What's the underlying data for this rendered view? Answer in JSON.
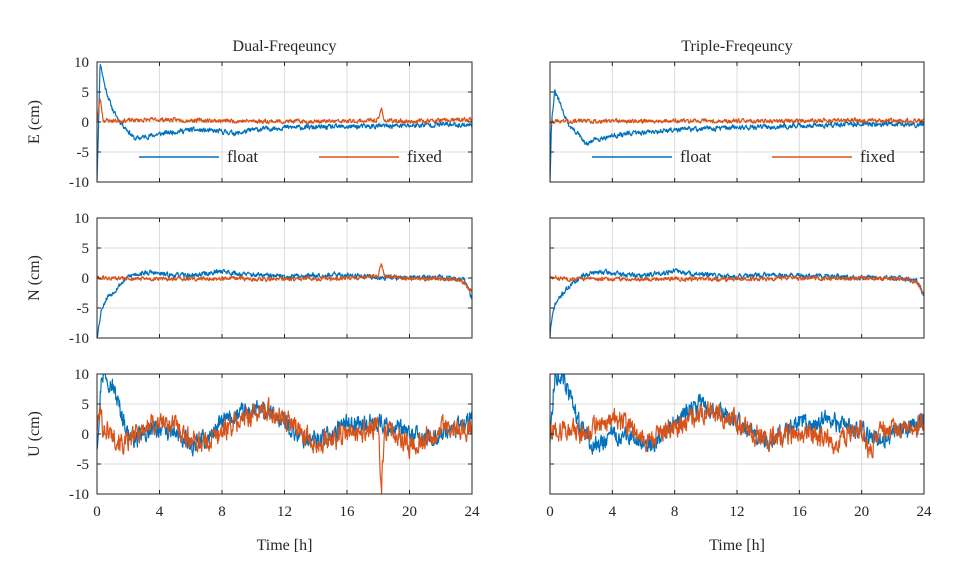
{
  "colors": {
    "float": "#0072BD",
    "fixed": "#D95319",
    "grid": "#dcdcdc",
    "axis": "#262626"
  },
  "chart_data": [
    {
      "type": "line",
      "panel": "dual-e",
      "title": "Dual-Freqeuncy",
      "ylabel": "E (cm)",
      "xlabel": "",
      "xlim": [
        0,
        24
      ],
      "ylim": [
        -10,
        10
      ],
      "xticks": [
        0,
        4,
        8,
        12,
        16,
        20,
        24
      ],
      "yticks": [
        -10,
        -5,
        0,
        5,
        10
      ],
      "show_xticklabels": false,
      "show_yticklabels": true,
      "grid": true,
      "legend": "bottom-center",
      "series": [
        {
          "name": "float",
          "color": "#0072BD",
          "noise": 0.35,
          "seed": 11,
          "x": [
            0,
            0.2,
            0.5,
            0.8,
            1.1,
            1.5,
            2.0,
            2.4,
            3.0,
            4.0,
            5.0,
            6.0,
            8.0,
            9.0,
            10.0,
            12.0,
            14.0,
            16.0,
            18.0,
            20.0,
            22.0,
            24.0
          ],
          "y": [
            -10,
            10,
            6,
            3.5,
            1.5,
            0,
            -1.5,
            -2.8,
            -2.5,
            -2.0,
            -1.6,
            -1.3,
            -1.6,
            -1.9,
            -1.3,
            -0.9,
            -0.9,
            -0.8,
            -0.7,
            -0.6,
            -0.4,
            -0.5
          ]
        },
        {
          "name": "fixed",
          "color": "#D95319",
          "noise": 0.3,
          "seed": 23,
          "x": [
            0,
            0.2,
            0.4,
            1.0,
            4.0,
            8.0,
            12.0,
            16.0,
            18.0,
            18.2,
            18.4,
            20.0,
            24.0
          ],
          "y": [
            0,
            4,
            0.3,
            0.2,
            0.4,
            0.2,
            0.1,
            0.1,
            0.3,
            2.3,
            0.2,
            0.1,
            0.4
          ]
        }
      ]
    },
    {
      "type": "line",
      "panel": "triple-e",
      "title": "Triple-Freqeuncy",
      "ylabel": "",
      "xlabel": "",
      "xlim": [
        0,
        24
      ],
      "ylim": [
        -10,
        10
      ],
      "xticks": [
        0,
        4,
        8,
        12,
        16,
        20,
        24
      ],
      "yticks": [
        -10,
        -5,
        0,
        5,
        10
      ],
      "show_xticklabels": false,
      "show_yticklabels": false,
      "grid": true,
      "legend": "bottom-center",
      "series": [
        {
          "name": "float",
          "color": "#0072BD",
          "noise": 0.35,
          "seed": 31,
          "x": [
            0,
            0.1,
            0.3,
            0.5,
            0.8,
            1.2,
            1.8,
            2.3,
            3.0,
            4.0,
            6.0,
            8.0,
            10.0,
            12.0,
            14.0,
            16.0,
            18.0,
            20.0,
            22.0,
            24.0
          ],
          "y": [
            -10,
            0,
            5,
            4,
            2,
            -0.5,
            -2,
            -3.8,
            -2.8,
            -2.3,
            -1.7,
            -1.3,
            -1.1,
            -0.9,
            -0.8,
            -0.6,
            -0.5,
            -0.3,
            -0.4,
            -0.5
          ]
        },
        {
          "name": "fixed",
          "color": "#D95319",
          "noise": 0.3,
          "seed": 43,
          "x": [
            0,
            1.0,
            4.0,
            8.0,
            12.0,
            16.0,
            20.0,
            24.0
          ],
          "y": [
            0.1,
            0.2,
            0.1,
            0.2,
            0.1,
            0.2,
            0.3,
            0.2
          ]
        }
      ]
    },
    {
      "type": "line",
      "panel": "dual-n",
      "title": "",
      "ylabel": "N (cm)",
      "xlabel": "",
      "xlim": [
        0,
        24
      ],
      "ylim": [
        -10,
        10
      ],
      "xticks": [
        0,
        4,
        8,
        12,
        16,
        20,
        24
      ],
      "yticks": [
        -10,
        -5,
        0,
        5,
        10
      ],
      "show_xticklabels": false,
      "show_yticklabels": true,
      "grid": true,
      "series": [
        {
          "name": "float",
          "color": "#0072BD",
          "noise": 0.35,
          "seed": 53,
          "x": [
            0,
            0.05,
            0.3,
            0.7,
            1.0,
            1.5,
            2.0,
            2.5,
            3.5,
            4.5,
            6.0,
            7.5,
            8.0,
            9.0,
            12.0,
            14.0,
            16.0,
            18.0,
            20.0,
            22.0,
            23.5,
            24.0
          ],
          "y": [
            -10,
            -9,
            -5,
            -3,
            -2.5,
            -1,
            0.2,
            0.7,
            0.9,
            0.5,
            0.4,
            0.9,
            1.2,
            0.7,
            0.2,
            0.5,
            0.5,
            0.1,
            0.1,
            0.1,
            -0.3,
            -3.5
          ]
        },
        {
          "name": "fixed",
          "color": "#D95319",
          "noise": 0.3,
          "seed": 61,
          "x": [
            0,
            1.0,
            4.0,
            8.0,
            12.0,
            16.0,
            18.0,
            18.2,
            18.4,
            20.0,
            23.0,
            23.6,
            24.0
          ],
          "y": [
            0,
            -0.1,
            -0.2,
            -0.1,
            -0.2,
            0,
            0.3,
            2.4,
            0.3,
            -0.1,
            -0.2,
            -1.0,
            -2.5
          ]
        }
      ]
    },
    {
      "type": "line",
      "panel": "triple-n",
      "title": "",
      "ylabel": "",
      "xlabel": "",
      "xlim": [
        0,
        24
      ],
      "ylim": [
        -10,
        10
      ],
      "xticks": [
        0,
        4,
        8,
        12,
        16,
        20,
        24
      ],
      "yticks": [
        -10,
        -5,
        0,
        5,
        10
      ],
      "show_xticklabels": false,
      "show_yticklabels": false,
      "grid": true,
      "series": [
        {
          "name": "float",
          "color": "#0072BD",
          "noise": 0.35,
          "seed": 71,
          "x": [
            0,
            0.05,
            0.3,
            0.7,
            1.0,
            1.5,
            2.0,
            2.5,
            3.5,
            4.5,
            6.0,
            7.5,
            8.0,
            9.0,
            12.0,
            14.0,
            16.0,
            18.0,
            20.0,
            22.0,
            23.5,
            24.0
          ],
          "y": [
            -10,
            -8,
            -4.5,
            -3,
            -2,
            -0.8,
            0.3,
            0.8,
            1.0,
            0.6,
            0.4,
            1.0,
            1.2,
            0.7,
            0.2,
            0.5,
            0.4,
            0.2,
            0.1,
            0,
            -0.3,
            -3.0
          ]
        },
        {
          "name": "fixed",
          "color": "#D95319",
          "noise": 0.3,
          "seed": 83,
          "x": [
            0,
            1.0,
            4.0,
            8.0,
            12.0,
            16.0,
            20.0,
            23.0,
            23.6,
            24.0
          ],
          "y": [
            0,
            -0.1,
            -0.2,
            -0.1,
            -0.2,
            0,
            -0.1,
            -0.2,
            -1.0,
            -2.5
          ]
        }
      ]
    },
    {
      "type": "line",
      "panel": "dual-u",
      "title": "",
      "ylabel": "U (cm)",
      "xlabel": "Time [h]",
      "xlim": [
        0,
        24
      ],
      "ylim": [
        -10,
        10
      ],
      "xticks": [
        0,
        4,
        8,
        12,
        16,
        20,
        24
      ],
      "yticks": [
        -10,
        -5,
        0,
        5,
        10
      ],
      "show_xticklabels": true,
      "show_yticklabels": true,
      "grid": true,
      "series": [
        {
          "name": "float",
          "color": "#0072BD",
          "noise": 1.3,
          "seed": 97,
          "x": [
            0,
            0.3,
            0.6,
            1.0,
            1.5,
            2.0,
            2.5,
            3.0,
            4.0,
            5.0,
            6.0,
            7.0,
            8.0,
            9.0,
            10.0,
            11.0,
            12.0,
            13.0,
            14.0,
            15.0,
            16.0,
            17.0,
            18.0,
            19.0,
            20.0,
            21.0,
            22.0,
            23.0,
            24.0
          ],
          "y": [
            -2,
            10,
            10,
            8,
            4,
            0,
            -1,
            0,
            1,
            0,
            -2,
            -1,
            2,
            3,
            4,
            3.5,
            2,
            -0.5,
            -1,
            0,
            2,
            1.5,
            2,
            1,
            0,
            -1,
            0,
            1,
            2.5
          ]
        },
        {
          "name": "fixed",
          "color": "#D95319",
          "noise": 1.5,
          "seed": 101,
          "x": [
            0,
            0.2,
            0.4,
            1.0,
            1.8,
            2.5,
            3.0,
            4.0,
            5.0,
            6.0,
            7.0,
            8.0,
            9.0,
            10.0,
            11.0,
            12.0,
            13.0,
            14.0,
            15.0,
            16.0,
            17.0,
            18.0,
            18.2,
            18.4,
            19.0,
            20.0,
            21.0,
            22.0,
            23.0,
            24.0
          ],
          "y": [
            1,
            4,
            1,
            0,
            -2,
            0,
            1,
            2,
            1.5,
            -1,
            -1.5,
            0.5,
            2,
            3.5,
            4,
            2.5,
            0.5,
            -1.5,
            -1,
            0,
            0.5,
            1,
            -9.5,
            1,
            0,
            -2,
            -1,
            1,
            0.5,
            1
          ]
        }
      ]
    },
    {
      "type": "line",
      "panel": "triple-u",
      "title": "",
      "ylabel": "",
      "xlabel": "Time [h]",
      "xlim": [
        0,
        24
      ],
      "ylim": [
        -10,
        10
      ],
      "xticks": [
        0,
        4,
        8,
        12,
        16,
        20,
        24
      ],
      "yticks": [
        -10,
        -5,
        0,
        5,
        10
      ],
      "show_xticklabels": true,
      "show_yticklabels": false,
      "grid": true,
      "series": [
        {
          "name": "float",
          "color": "#0072BD",
          "noise": 1.3,
          "seed": 113,
          "x": [
            0,
            0.3,
            0.6,
            1.0,
            1.5,
            2.0,
            2.5,
            3.0,
            4.0,
            5.0,
            6.0,
            7.0,
            8.0,
            9.0,
            9.5,
            10.0,
            11.0,
            12.0,
            13.0,
            14.0,
            15.0,
            16.0,
            17.0,
            18.0,
            19.0,
            20.0,
            21.0,
            22.0,
            23.0,
            24.0
          ],
          "y": [
            -1,
            10,
            10,
            8,
            5,
            1,
            -1,
            -2,
            0,
            -0.5,
            -2,
            -1,
            2,
            4,
            5,
            4.5,
            3.5,
            2,
            0,
            -1,
            0,
            2,
            1.5,
            2.5,
            1,
            0.5,
            -1,
            0,
            1,
            2
          ]
        },
        {
          "name": "fixed",
          "color": "#D95319",
          "noise": 1.5,
          "seed": 127,
          "x": [
            0,
            1.0,
            2.0,
            3.0,
            4.0,
            5.0,
            6.0,
            7.0,
            8.0,
            9.0,
            10.0,
            11.0,
            12.0,
            13.0,
            14.0,
            15.0,
            16.0,
            17.0,
            18.0,
            19.0,
            20.0,
            20.5,
            21.0,
            22.0,
            23.0,
            24.0
          ],
          "y": [
            0.5,
            1,
            0,
            1.5,
            2.5,
            1.5,
            -1,
            -0.5,
            1,
            2.5,
            4,
            3,
            2,
            0,
            -1,
            -0.5,
            0.5,
            0,
            -1.5,
            -0.5,
            1,
            -3.5,
            0,
            0.5,
            1,
            1.5
          ]
        }
      ]
    }
  ]
}
